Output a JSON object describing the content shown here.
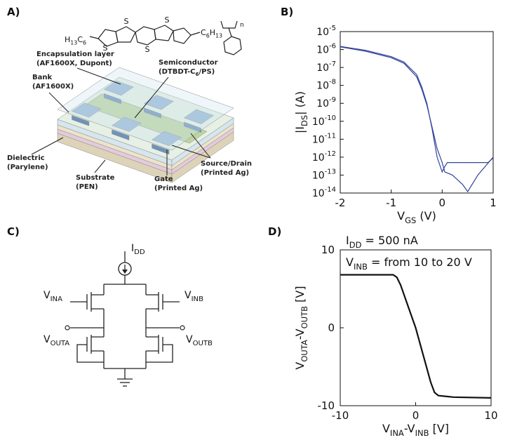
{
  "panels": {
    "a": {
      "letter": "A)",
      "molecule": {
        "left_chain": [
          "H",
          "13",
          "C",
          "6"
        ],
        "right_chain": [
          "C",
          "6",
          "H",
          "13"
        ],
        "sulfur": [
          "S",
          "S",
          "S",
          "S"
        ],
        "repeat": "n"
      },
      "labels": {
        "encapsulation": [
          "Encapsulation layer",
          "(AF1600X, Dupont)"
        ],
        "bank": [
          "Bank",
          "(AF1600X)"
        ],
        "semiconductor": [
          "Semiconductor",
          [
            "(DTBDT-C",
            "6",
            "/PS)"
          ]
        ],
        "dielectric": [
          "Dielectric",
          "(Parylene)"
        ],
        "substrate": [
          "Substrate",
          "(PEN)"
        ],
        "gate": [
          "Gate",
          "(Printed Ag)"
        ],
        "source_drain": [
          "Source/Drain",
          "(Printed Ag)"
        ]
      }
    },
    "c": {
      "letter": "C)",
      "nodes": {
        "idd": [
          "I",
          "DD"
        ],
        "vina": [
          "V",
          "INA"
        ],
        "vinb": [
          "V",
          "INB"
        ],
        "vouta": [
          "V",
          "OUTA"
        ],
        "voutb": [
          "V",
          "OUTB"
        ]
      }
    }
  },
  "chart_data": [
    {
      "type": "line",
      "panel_label": "B)",
      "xlabel": [
        "V",
        "GS",
        " (V)"
      ],
      "ylabel": [
        "|I",
        "DS",
        "| (A)"
      ],
      "xlim": [
        -2,
        1
      ],
      "xticks": [
        -2,
        -1,
        0,
        1
      ],
      "ylim": [
        1e-14,
        1e-05
      ],
      "yscale": "log",
      "yticks": [
        {
          "value": 1e-14,
          "label": "10",
          "exponent": "-14"
        },
        {
          "value": 1e-13,
          "label": "10",
          "exponent": "-13"
        },
        {
          "value": 1e-12,
          "label": "10",
          "exponent": "-12"
        },
        {
          "value": 1e-11,
          "label": "10",
          "exponent": "-11"
        },
        {
          "value": 1e-10,
          "label": "10",
          "exponent": "-10"
        },
        {
          "value": 1e-09,
          "label": "10",
          "exponent": "-9"
        },
        {
          "value": 1e-08,
          "label": "10",
          "exponent": "-8"
        },
        {
          "value": 1e-07,
          "label": "10",
          "exponent": "-7"
        },
        {
          "value": 1e-06,
          "label": "10",
          "exponent": "-6"
        },
        {
          "value": 1e-05,
          "label": "10",
          "exponent": "-5"
        }
      ],
      "series": [
        {
          "color": "#34439a",
          "x": [
            -2,
            -1.5,
            -1,
            -0.75,
            -0.5,
            -0.4,
            -0.3,
            -0.2,
            -0.1,
            0,
            0.05,
            0.1,
            0.5,
            0.9,
            1
          ],
          "values": [
            1.5e-06,
            9e-07,
            4e-07,
            2e-07,
            4e-08,
            8e-09,
            1e-09,
            4e-11,
            1e-12,
            1.5e-13,
            3e-13,
            5e-13,
            5e-13,
            5e-13,
            9e-13
          ]
        },
        {
          "color": "#34439a",
          "x": [
            -2,
            -1.5,
            -1,
            -0.75,
            -0.5,
            -0.4,
            -0.3,
            -0.2,
            -0.1,
            0,
            0.05,
            0.2,
            0.4,
            0.5,
            0.7,
            1
          ],
          "values": [
            1.4e-06,
            8e-07,
            3.5e-07,
            1.7e-07,
            3e-08,
            6e-09,
            8e-10,
            5e-11,
            3e-12,
            5e-13,
            1.5e-13,
            1e-13,
            3e-14,
            1.2e-14,
            1e-13,
            1e-12
          ]
        }
      ]
    },
    {
      "type": "line",
      "panel_label": "D)",
      "xlabel": [
        "V",
        "INA",
        "-V",
        "INB",
        " [V]"
      ],
      "ylabel": [
        "V",
        "OUTA",
        "-V",
        "OUTB",
        " [V]"
      ],
      "annotations": [
        [
          "I",
          "DD",
          " = 500 nA"
        ],
        [
          "V",
          "INB",
          " = from 10 to 20 V"
        ]
      ],
      "xlim": [
        -10,
        10
      ],
      "xticks": [
        -10,
        0,
        10
      ],
      "ylim": [
        -10,
        10
      ],
      "yticks": [
        -10,
        0,
        10
      ],
      "series": [
        {
          "color": "#111111",
          "x": [
            -10,
            -3,
            -2.5,
            -2,
            0,
            2,
            2.5,
            3,
            5,
            10
          ],
          "values": [
            6.8,
            6.8,
            6.5,
            5.5,
            0,
            -7,
            -8.3,
            -8.7,
            -8.9,
            -9
          ]
        }
      ]
    }
  ]
}
